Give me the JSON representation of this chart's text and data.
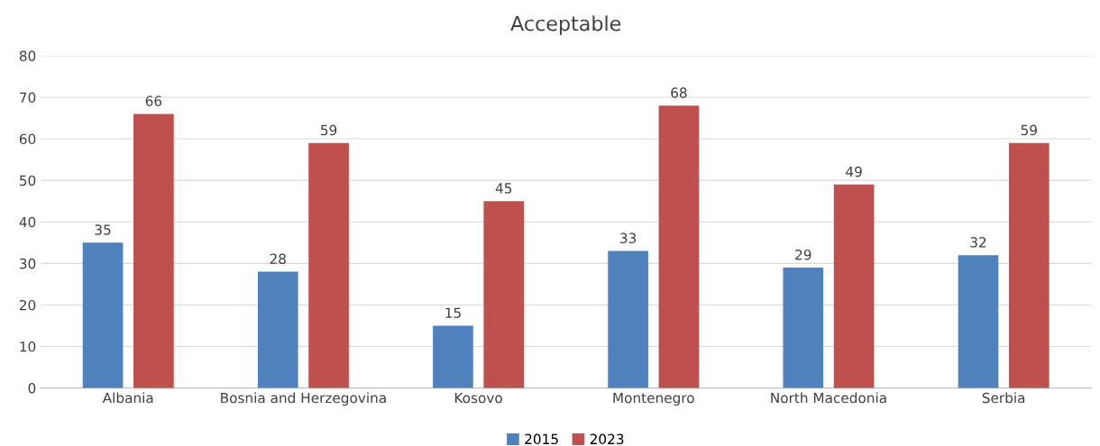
{
  "chart_data": {
    "type": "bar",
    "title": "Acceptable",
    "categories": [
      "Albania",
      "Bosnia and Herzegovina",
      "Kosovo",
      "Montenegro",
      "North Macedonia",
      "Serbia"
    ],
    "series": [
      {
        "name": "2015",
        "color": "#4f81bd",
        "values": [
          35,
          28,
          15,
          33,
          29,
          32
        ]
      },
      {
        "name": "2023",
        "color": "#c0504d",
        "values": [
          66,
          59,
          45,
          68,
          49,
          59
        ]
      }
    ],
    "ylim": [
      0,
      80
    ],
    "yticks": [
      0,
      10,
      20,
      30,
      40,
      50,
      60,
      70,
      80
    ],
    "grid": "y",
    "legend": "bottom",
    "data_labels": true
  }
}
